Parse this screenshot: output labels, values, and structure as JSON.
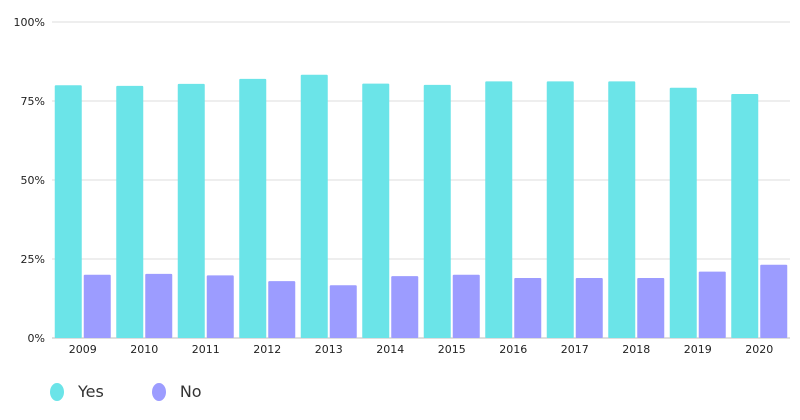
{
  "chart_data": {
    "type": "bar",
    "categories": [
      "2009",
      "2010",
      "2011",
      "2012",
      "2013",
      "2014",
      "2015",
      "2016",
      "2017",
      "2018",
      "2019",
      "2020"
    ],
    "series": [
      {
        "name": "Yes",
        "values": [
          80,
          79.8,
          80.4,
          82,
          83.3,
          80.5,
          80.1,
          81.2,
          81.2,
          81.2,
          79.2,
          77.2
        ]
      },
      {
        "name": "No",
        "values": [
          20,
          20.3,
          19.8,
          18,
          16.7,
          19.6,
          20,
          19,
          19,
          19,
          21,
          23.2
        ]
      }
    ],
    "ylim": [
      0,
      100
    ],
    "yticks": [
      0,
      25,
      50,
      75,
      100
    ],
    "ytick_labels": [
      "0%",
      "25%",
      "50%",
      "75%",
      "100%"
    ],
    "grid": true,
    "legend_position": "bottom-left",
    "colors": {
      "Yes": "#6be4e8",
      "No": "#9c9cff"
    }
  }
}
